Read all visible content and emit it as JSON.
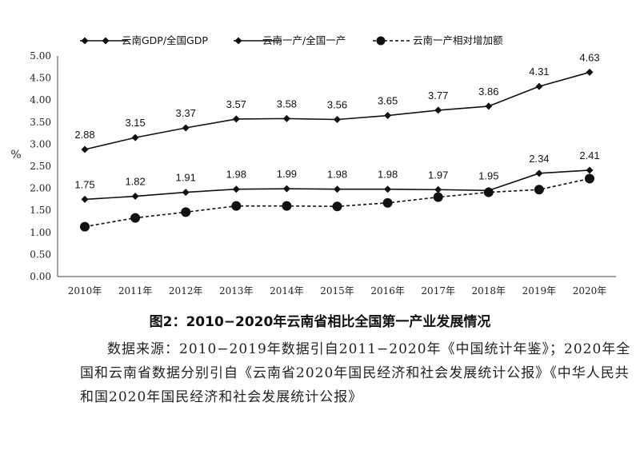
{
  "chart_data": {
    "type": "line",
    "categories": [
      "2010年",
      "2011年",
      "2012年",
      "2013年",
      "2014年",
      "2015年",
      "2016年",
      "2017年",
      "2018年",
      "2019年",
      "2020年"
    ],
    "series": [
      {
        "name": "云南GDP/全国GDP",
        "marker": "diamond",
        "line": "solid",
        "values": [
          1.75,
          1.82,
          1.91,
          1.98,
          1.99,
          1.98,
          1.98,
          1.97,
          1.95,
          2.34,
          2.41
        ]
      },
      {
        "name": "云南一产/全国一产",
        "marker": "diamond",
        "line": "solid",
        "values": [
          2.88,
          3.15,
          3.37,
          3.57,
          3.58,
          3.56,
          3.65,
          3.77,
          3.86,
          4.31,
          4.63
        ]
      },
      {
        "name": "云南一产相对增加额",
        "marker": "circle",
        "line": "dashed",
        "values": [
          1.13,
          1.33,
          1.46,
          1.6,
          1.6,
          1.59,
          1.67,
          1.8,
          1.91,
          1.97,
          2.22
        ]
      }
    ],
    "data_labels": {
      "0": [
        "1.75",
        "1.82",
        "1.91",
        "1.98",
        "1.99",
        "1.98",
        "1.98",
        "1.97",
        "1.95",
        "2.34",
        "2.41"
      ],
      "1": [
        "2.88",
        "3.15",
        "3.37",
        "3.57",
        "3.58",
        "3.56",
        "3.65",
        "3.77",
        "3.86",
        "4.31",
        "4.63"
      ]
    },
    "yticks": [
      "0.00",
      "0.50",
      "1.00",
      "1.50",
      "2.00",
      "2.50",
      "3.00",
      "3.50",
      "4.00",
      "4.50",
      "5.00"
    ],
    "ylim": [
      0,
      5
    ],
    "ylabel": "%",
    "xlabel": "",
    "legend_position": "top",
    "grid": false,
    "line_color": "#111111"
  },
  "caption": "图2：2010−2020年云南省相比全国第一产业发展情况",
  "source_note": "数据来源：2010−2019年数据引自2011−2020年《中国统计年鉴》；2020年全国和云南省数据分别引自《云南省2020年国民经济和社会发展统计公报》《中华人民共和国2020年国民经济和社会发展统计公报》"
}
